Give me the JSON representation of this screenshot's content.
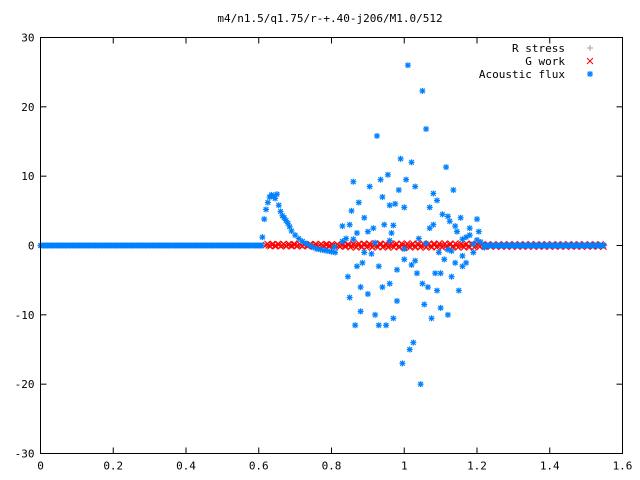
{
  "chart_data": {
    "type": "scatter",
    "title": "m4/n1.5/q1.75/r-+.40-j206/M1.0/512",
    "xlabel": "",
    "ylabel": "",
    "xlim": [
      0,
      1.6
    ],
    "ylim": [
      -30,
      30
    ],
    "x_ticks": [
      "0",
      "0.2",
      "0.4",
      "0.6",
      "0.8",
      "1",
      "1.2",
      "1.4",
      "1.6"
    ],
    "y_ticks": [
      "30",
      "20",
      "10",
      "0",
      "-10",
      "-20",
      "-30"
    ],
    "grid": false,
    "legend_position": "top-right",
    "series": [
      {
        "name": "R stress",
        "marker": "plus",
        "color": "#a0a0a0",
        "x_range": [
          0,
          1.55
        ],
        "y": 0
      },
      {
        "name": "G work",
        "marker": "x",
        "color": "#ff0000",
        "x_range": [
          0.62,
          1.55
        ],
        "y_amplitude": 0.3
      },
      {
        "name": "Acoustic flux",
        "marker": "star",
        "color": "#0080ff",
        "baseline_x_range": [
          0,
          1.55
        ],
        "points": [
          [
            0.61,
            1.2
          ],
          [
            0.615,
            3.8
          ],
          [
            0.62,
            5.2
          ],
          [
            0.625,
            6.2
          ],
          [
            0.63,
            7.0
          ],
          [
            0.635,
            7.3
          ],
          [
            0.64,
            7.1
          ],
          [
            0.645,
            6.8
          ],
          [
            0.65,
            7.4
          ],
          [
            0.655,
            5.8
          ],
          [
            0.66,
            4.9
          ],
          [
            0.665,
            4.3
          ],
          [
            0.67,
            4.0
          ],
          [
            0.675,
            3.6
          ],
          [
            0.68,
            3.2
          ],
          [
            0.685,
            2.7
          ],
          [
            0.69,
            2.1
          ],
          [
            0.7,
            1.5
          ],
          [
            0.71,
            1.0
          ],
          [
            0.72,
            0.6
          ],
          [
            0.73,
            0.3
          ],
          [
            0.74,
            0.0
          ],
          [
            0.75,
            -0.3
          ],
          [
            0.76,
            -0.5
          ],
          [
            0.77,
            -0.6
          ],
          [
            0.78,
            -0.7
          ],
          [
            0.79,
            -0.8
          ],
          [
            0.8,
            -0.9
          ],
          [
            0.81,
            -1.0
          ],
          [
            0.83,
            2.8
          ],
          [
            0.84,
            1.0
          ],
          [
            0.845,
            -4.5
          ],
          [
            0.85,
            -7.5
          ],
          [
            0.855,
            5.0
          ],
          [
            0.86,
            9.2
          ],
          [
            0.865,
            -11.5
          ],
          [
            0.87,
            -3.0
          ],
          [
            0.875,
            6.2
          ],
          [
            0.88,
            -9.5
          ],
          [
            0.885,
            -2.5
          ],
          [
            0.89,
            4.0
          ],
          [
            0.9,
            -7.0
          ],
          [
            0.905,
            8.5
          ],
          [
            0.91,
            -1.2
          ],
          [
            0.915,
            2.5
          ],
          [
            0.92,
            -10.0
          ],
          [
            0.925,
            15.8
          ],
          [
            0.93,
            -11.5
          ],
          [
            0.935,
            9.5
          ],
          [
            0.94,
            -6.0
          ],
          [
            0.945,
            3.0
          ],
          [
            0.95,
            -11.5
          ],
          [
            0.955,
            10.2
          ],
          [
            0.96,
            -5.5
          ],
          [
            0.965,
            1.8
          ],
          [
            0.97,
            -10.5
          ],
          [
            0.975,
            6.0
          ],
          [
            0.98,
            -3.5
          ],
          [
            0.985,
            8.0
          ],
          [
            0.99,
            12.5
          ],
          [
            0.995,
            -17.0
          ],
          [
            1.0,
            -2.0
          ],
          [
            1.005,
            9.5
          ],
          [
            1.01,
            26.0
          ],
          [
            1.015,
            -15.0
          ],
          [
            1.02,
            12.0
          ],
          [
            1.025,
            -14.0
          ],
          [
            1.03,
            8.5
          ],
          [
            1.035,
            -4.0
          ],
          [
            1.04,
            1.0
          ],
          [
            1.045,
            -20.0
          ],
          [
            1.05,
            22.3
          ],
          [
            1.055,
            -8.5
          ],
          [
            1.06,
            16.8
          ],
          [
            1.065,
            -6.0
          ],
          [
            1.07,
            5.5
          ],
          [
            1.075,
            -10.5
          ],
          [
            1.08,
            3.0
          ],
          [
            1.085,
            -4.0
          ],
          [
            1.09,
            6.5
          ],
          [
            1.095,
            -1.0
          ],
          [
            1.1,
            -9.0
          ],
          [
            1.105,
            4.5
          ],
          [
            1.11,
            -2.0
          ],
          [
            1.115,
            11.3
          ],
          [
            1.12,
            -10.0
          ],
          [
            1.125,
            3.5
          ],
          [
            1.13,
            -4.5
          ],
          [
            1.135,
            8.0
          ],
          [
            1.14,
            -2.5
          ],
          [
            1.145,
            2.0
          ],
          [
            1.15,
            -6.5
          ],
          [
            1.155,
            4.0
          ],
          [
            1.16,
            -1.5
          ],
          [
            1.17,
            -2.5
          ],
          [
            1.18,
            1.5
          ],
          [
            1.19,
            -1.0
          ],
          [
            1.2,
            3.8
          ],
          [
            1.205,
            2.0
          ],
          [
            1.21,
            0.5
          ],
          [
            1.22,
            -0.3
          ],
          [
            0.808,
            -0.2
          ],
          [
            0.83,
            0.6
          ],
          [
            0.86,
            0.9
          ],
          [
            0.89,
            -1.0
          ],
          [
            0.92,
            0.4
          ],
          [
            0.96,
            0.7
          ],
          [
            1.0,
            -0.5
          ],
          [
            1.06,
            0.3
          ],
          [
            1.12,
            -0.6
          ],
          [
            1.16,
            0.9
          ],
          [
            1.19,
            0.2
          ],
          [
            0.85,
            3.0
          ],
          [
            0.87,
            1.8
          ],
          [
            0.9,
            2.0
          ],
          [
            0.93,
            -3.0
          ],
          [
            0.97,
            2.9
          ],
          [
            1.0,
            5.5
          ],
          [
            1.03,
            -2.2
          ],
          [
            1.07,
            2.5
          ],
          [
            1.1,
            -4.0
          ],
          [
            1.14,
            2.8
          ],
          [
            1.17,
            1.2
          ],
          [
            1.2,
            0.8
          ],
          [
            0.88,
            -6.0
          ],
          [
            0.94,
            7.0
          ],
          [
            0.98,
            -8.0
          ],
          [
            1.02,
            -2.8
          ],
          [
            1.08,
            7.5
          ],
          [
            1.12,
            4.2
          ],
          [
            1.13,
            -0.8
          ],
          [
            1.16,
            -3.0
          ],
          [
            1.18,
            2.5
          ],
          [
            0.96,
            5.8
          ],
          [
            1.05,
            -5.5
          ],
          [
            1.09,
            -6.5
          ]
        ]
      }
    ]
  }
}
